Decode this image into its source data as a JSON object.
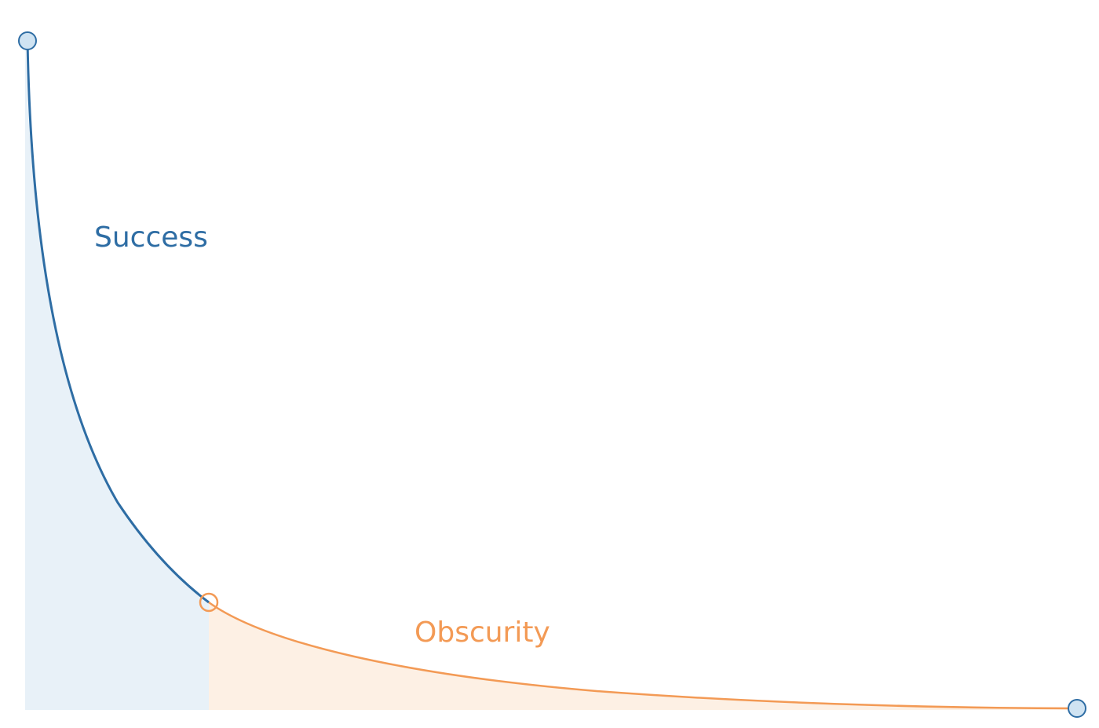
{
  "diagram": {
    "labels": {
      "success": "Success",
      "obscurity": "Obscurity"
    },
    "colors": {
      "success_line": "#2e6da4",
      "success_fill": "#e8f1f8",
      "obscurity_line": "#f39a55",
      "obscurity_fill": "#fdf0e4",
      "marker_fill": "#cfe3f2"
    }
  }
}
